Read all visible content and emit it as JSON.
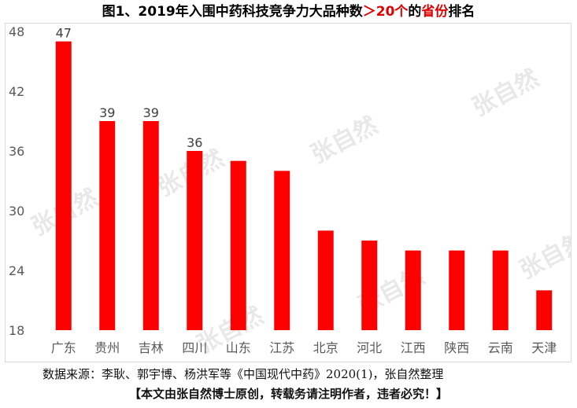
{
  "title": {
    "part1": "图1、2019年入围中药科技竞争力大品种数",
    "part2": "＞20个",
    "part3": "的",
    "part4": "省份",
    "part5": "排名"
  },
  "source_text": "数据来源：李耿、郭宇博、杨洪军等《中国现代中药》2020(1)，张自然整理",
  "copyright_text": "【本文由张自然博士原创，转载务请注明作者，违者必究！】",
  "watermark_text": "张自然",
  "colors": {
    "bar": "#ff0000",
    "title_accent": "#e00000"
  },
  "chart_data": {
    "type": "bar",
    "categories": [
      "广东",
      "贵州",
      "吉林",
      "四川",
      "山东",
      "江苏",
      "北京",
      "河北",
      "江西",
      "陕西",
      "云南",
      "天津"
    ],
    "values": [
      47,
      39,
      39,
      36,
      35,
      34,
      28,
      27,
      26,
      26,
      26,
      22
    ],
    "data_labels": [
      "47",
      "39",
      "39",
      "36",
      "",
      "",
      "",
      "",
      "",
      "",
      "",
      ""
    ],
    "yticks": [
      "18",
      "24",
      "30",
      "36",
      "42",
      "48"
    ],
    "ylim": [
      18,
      48
    ],
    "grid": false,
    "legend": "none"
  }
}
